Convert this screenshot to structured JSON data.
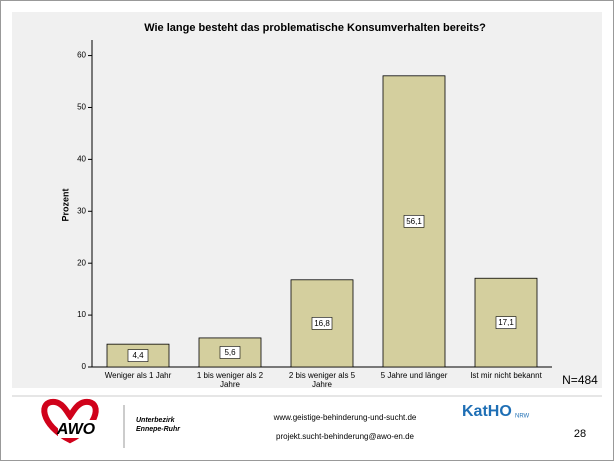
{
  "chart_data": {
    "type": "bar",
    "title": "Wie lange besteht das problematische Konsumverhalten bereits?",
    "categories": [
      "Weniger als 1 Jahr",
      "1 bis weniger als 2 Jahre",
      "2 bis weniger als 5 Jahre",
      "5 Jahre und länger",
      "Ist mir nicht bekannt"
    ],
    "values": [
      4.4,
      5.6,
      16.8,
      56.1,
      17.1
    ],
    "value_labels": [
      "4,4",
      "5,6",
      "16,8",
      "56,1",
      "17,1"
    ],
    "color": "#d4cf9e",
    "y_label": "Prozent",
    "ylim": [
      0,
      63
    ],
    "yticks": [
      0,
      10,
      20,
      30,
      40,
      50,
      60
    ],
    "annotation": "N=484"
  },
  "footer": {
    "org": "AWO",
    "org_sub_1": "Unterbezirk",
    "org_sub_2": "Ennepe-Ruhr",
    "web": "www.geistige-behinderung-und-sucht.de",
    "email": "projekt.sucht-behinderung@awo-en.de",
    "katho": "KatHO",
    "katho_sub": "NRW",
    "page": "28"
  }
}
